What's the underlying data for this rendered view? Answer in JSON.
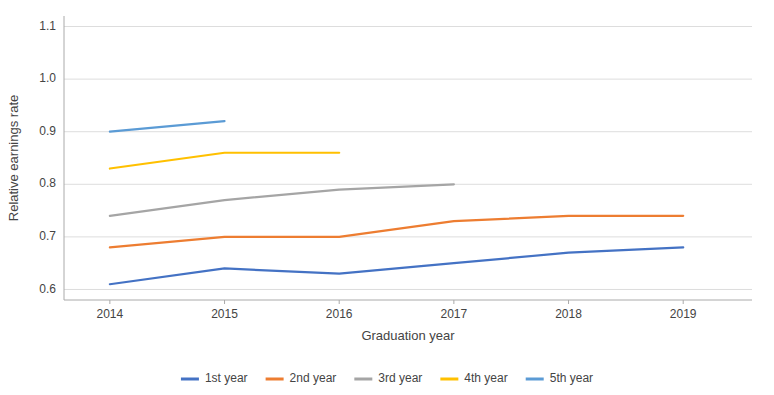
{
  "chart_data": {
    "type": "line",
    "x": [
      2014,
      2015,
      2016,
      2017,
      2018,
      2019
    ],
    "series": [
      {
        "name": "1st year",
        "color": "#4472c4",
        "values": [
          0.61,
          0.64,
          0.63,
          0.65,
          0.67,
          0.68
        ]
      },
      {
        "name": "2nd year",
        "color": "#ed7d31",
        "values": [
          0.68,
          0.7,
          0.7,
          0.73,
          0.74,
          0.74
        ]
      },
      {
        "name": "3rd year",
        "color": "#a5a5a5",
        "values": [
          0.74,
          0.77,
          0.79,
          0.8,
          null,
          null
        ]
      },
      {
        "name": "4th year",
        "color": "#ffc000",
        "values": [
          0.83,
          0.86,
          0.86,
          null,
          null,
          null
        ]
      },
      {
        "name": "5th year",
        "color": "#5b9bd5",
        "values": [
          0.9,
          0.92,
          null,
          null,
          null,
          null
        ]
      }
    ],
    "xlabel": "Graduation year",
    "ylabel": "Relative earnings rate",
    "xlim": [
      2013.6,
      2019.6
    ],
    "xticks": [
      2014,
      2015,
      2016,
      2017,
      2018,
      2019
    ],
    "ylim": [
      0.58,
      1.12
    ],
    "yticks": [
      0.6,
      0.7,
      0.8,
      0.9,
      {
        "value": 1.0,
        "label": "1.0"
      },
      1.1
    ],
    "grid": true,
    "legend": "bottom"
  }
}
